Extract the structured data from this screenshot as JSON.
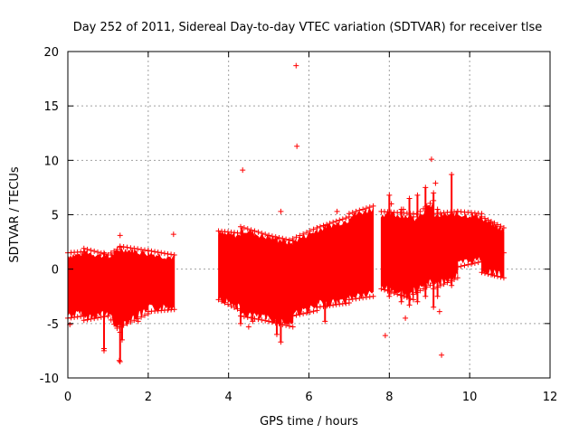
{
  "chart_data": {
    "type": "scatter",
    "title": "Day 252 of 2011, Sidereal Day-to-day VTEC variation (SDTVAR) for receiver tlse",
    "xlabel": "GPS time / hours",
    "ylabel": "SDTVAR / TECUs",
    "xlim": [
      0,
      12
    ],
    "ylim": [
      -10,
      20
    ],
    "xticks": [
      0,
      2,
      4,
      6,
      8,
      10,
      12
    ],
    "yticks": [
      -10,
      -5,
      0,
      5,
      10,
      15,
      20
    ],
    "grid": true,
    "marker": "+",
    "color": "#ff0000",
    "series": [
      {
        "name": "SDTVAR",
        "bands": [
          {
            "x": [
              0.0,
              0.4
            ],
            "low": [
              -4.2,
              -4.0
            ],
            "high": [
              1.2,
              1.3
            ]
          },
          {
            "x": [
              0.4,
              1.0
            ],
            "low": [
              -4.4,
              -4.0
            ],
            "high": [
              1.6,
              1.0
            ]
          },
          {
            "x": [
              1.0,
              1.3
            ],
            "low": [
              -4.0,
              -5.5
            ],
            "high": [
              1.0,
              1.7
            ]
          },
          {
            "x": [
              1.3,
              2.0
            ],
            "low": [
              -5.0,
              -3.8
            ],
            "high": [
              1.8,
              1.4
            ]
          },
          {
            "x": [
              2.0,
              2.65
            ],
            "low": [
              -3.6,
              -3.4
            ],
            "high": [
              1.4,
              1.0
            ]
          },
          {
            "x": [
              3.75,
              4.3
            ],
            "low": [
              -2.5,
              -3.5
            ],
            "high": [
              3.2,
              3.0
            ]
          },
          {
            "x": [
              4.3,
              5.0
            ],
            "low": [
              -4.0,
              -4.5
            ],
            "high": [
              3.6,
              2.8
            ]
          },
          {
            "x": [
              5.0,
              5.6
            ],
            "low": [
              -4.5,
              -5.0
            ],
            "high": [
              2.8,
              2.3
            ]
          },
          {
            "x": [
              5.6,
              6.2
            ],
            "low": [
              -4.0,
              -3.5
            ],
            "high": [
              2.5,
              3.5
            ]
          },
          {
            "x": [
              6.2,
              7.0
            ],
            "low": [
              -3.2,
              -2.8
            ],
            "high": [
              3.5,
              4.5
            ]
          },
          {
            "x": [
              7.0,
              7.6
            ],
            "low": [
              -2.5,
              -2.2
            ],
            "high": [
              4.8,
              5.5
            ]
          },
          {
            "x": [
              7.8,
              8.6
            ],
            "low": [
              -1.5,
              -2.5
            ],
            "high": [
              5.0,
              4.8
            ]
          },
          {
            "x": [
              8.6,
              9.1
            ],
            "low": [
              -2.0,
              -1.0
            ],
            "high": [
              4.5,
              6.0
            ]
          },
          {
            "x": [
              9.1,
              9.7
            ],
            "low": [
              -1.5,
              -0.5
            ],
            "high": [
              4.8,
              5.0
            ]
          },
          {
            "x": [
              9.7,
              10.3
            ],
            "low": [
              0.5,
              1.0
            ],
            "high": [
              5.0,
              4.8
            ]
          },
          {
            "x": [
              10.3,
              10.85
            ],
            "low": [
              0.0,
              -0.5
            ],
            "high": [
              4.5,
              3.5
            ]
          }
        ],
        "spikes": [
          {
            "x": 0.9,
            "low": -7.5,
            "high": 1.5
          },
          {
            "x": 1.3,
            "low": -8.5,
            "high": 1.0
          },
          {
            "x": 1.35,
            "low": -6.5,
            "high": 1.5
          },
          {
            "x": 4.3,
            "low": -5.0,
            "high": 3.0
          },
          {
            "x": 4.6,
            "low": -4.8,
            "high": 3.2
          },
          {
            "x": 5.2,
            "low": -6.0,
            "high": 2.8
          },
          {
            "x": 5.3,
            "low": -6.7,
            "high": 2.5
          },
          {
            "x": 6.4,
            "low": -4.8,
            "high": 3.5
          },
          {
            "x": 8.0,
            "low": -2.5,
            "high": 6.8
          },
          {
            "x": 8.3,
            "low": -3.0,
            "high": 5.5
          },
          {
            "x": 8.5,
            "low": -3.3,
            "high": 6.5
          },
          {
            "x": 8.7,
            "low": -3.0,
            "high": 6.8
          },
          {
            "x": 8.9,
            "low": -2.5,
            "high": 7.5
          },
          {
            "x": 9.1,
            "low": -3.5,
            "high": 7.0
          },
          {
            "x": 9.2,
            "low": -2.5,
            "high": 5.5
          },
          {
            "x": 9.55,
            "low": -1.5,
            "high": 8.7
          }
        ],
        "outliers": [
          {
            "x": 5.68,
            "y": 18.7
          },
          {
            "x": 5.7,
            "y": 11.3
          },
          {
            "x": 4.35,
            "y": 9.1
          },
          {
            "x": 5.3,
            "y": 5.3
          },
          {
            "x": 6.7,
            "y": 5.3
          },
          {
            "x": 2.63,
            "y": 3.2
          },
          {
            "x": 1.3,
            "y": 3.1
          },
          {
            "x": 9.05,
            "y": 10.1
          },
          {
            "x": 9.15,
            "y": 7.9
          },
          {
            "x": 8.05,
            "y": 6.0
          },
          {
            "x": 8.35,
            "y": 5.5
          },
          {
            "x": 0.05,
            "y": -5.1
          },
          {
            "x": 0.9,
            "y": -7.3
          },
          {
            "x": 1.28,
            "y": -8.4
          },
          {
            "x": 4.5,
            "y": -5.3
          },
          {
            "x": 7.9,
            "y": -6.1
          },
          {
            "x": 9.3,
            "y": -7.9
          },
          {
            "x": 9.25,
            "y": -3.9
          },
          {
            "x": 1.75,
            "y": -4.8
          },
          {
            "x": 8.4,
            "y": -4.5
          },
          {
            "x": 10.85,
            "y": 1.5
          }
        ]
      }
    ]
  }
}
